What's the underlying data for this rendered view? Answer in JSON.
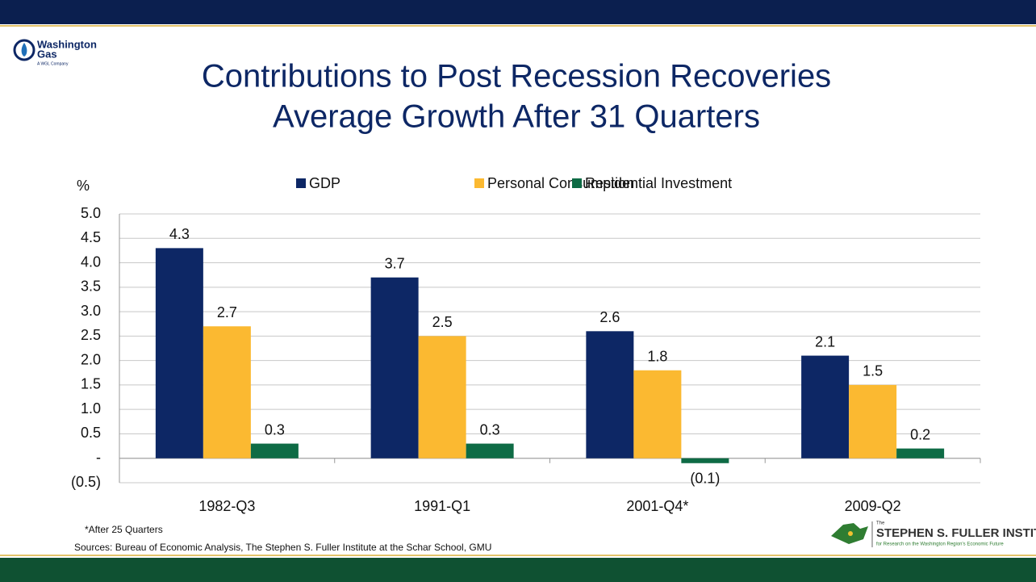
{
  "chart_data": {
    "type": "bar",
    "title": "Contributions to Post Recession Recoveries",
    "subtitle": "Average Growth After 31 Quarters",
    "y_label": "%",
    "categories": [
      "1982-Q3",
      "1991-Q1",
      "2001-Q4*",
      "2009-Q2"
    ],
    "series": [
      {
        "name": "GDP",
        "color": "#0d2765",
        "values": [
          4.3,
          3.7,
          2.6,
          2.1
        ]
      },
      {
        "name": "Personal Consumption",
        "color": "#fbb931",
        "values": [
          2.7,
          2.5,
          1.8,
          1.5
        ]
      },
      {
        "name": "Residential Investment",
        "color": "#0e6b45",
        "values": [
          0.3,
          0.3,
          -0.1,
          0.2
        ],
        "value_labels": [
          "0.3",
          "0.3",
          "(0.1)",
          "0.2"
        ]
      }
    ],
    "ylim": [
      -0.5,
      5
    ],
    "yticks": [
      {
        "value": -0.5,
        "label": "(0.5)"
      },
      {
        "value": 0,
        "label": "-"
      },
      0.5,
      {
        "value": 1,
        "label": "1.0"
      },
      1.5,
      {
        "value": 2,
        "label": "2.0"
      },
      2.5,
      {
        "value": 3,
        "label": "3.0"
      },
      3.5,
      {
        "value": 4,
        "label": "4.0"
      },
      4.5,
      {
        "value": 5,
        "label": "5.0"
      }
    ],
    "grid": true,
    "legend": "top"
  },
  "footnotes": [
    "*After 25 Quarters",
    "Sources: Bureau of Economic Analysis, The Stephen S. Fuller Institute at the Schar School, GMU"
  ],
  "logos": {
    "left": [
      "Washington",
      "Gas",
      "A WGL Company"
    ],
    "right": [
      "The",
      "STEPHEN S. FULLER INSTITUTE",
      "for Research on the Washington Region's Economic Future"
    ]
  }
}
